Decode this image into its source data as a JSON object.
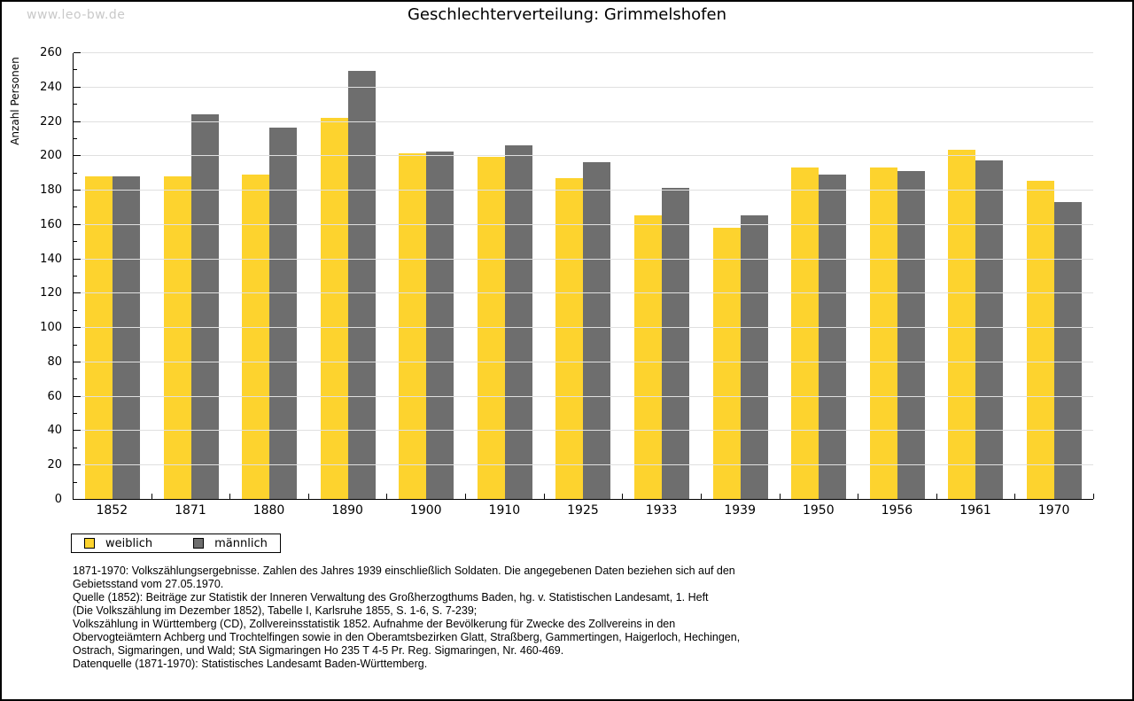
{
  "watermark": "www.leo-bw.de",
  "chart_data": {
    "type": "bar",
    "title": "Geschlechterverteilung: Grimmelshofen",
    "xlabel": "",
    "ylabel": "Anzahl Personen",
    "categories": [
      "1852",
      "1871",
      "1880",
      "1890",
      "1900",
      "1910",
      "1925",
      "1933",
      "1939",
      "1950",
      "1956",
      "1961",
      "1970"
    ],
    "series": [
      {
        "name": "weiblich",
        "color": "#FDD32E",
        "values": [
          188,
          188,
          189,
          222,
          201,
          199,
          187,
          165,
          158,
          193,
          193,
          203,
          185
        ]
      },
      {
        "name": "männlich",
        "color": "#6E6E6E",
        "values": [
          188,
          224,
          216,
          249,
          202,
          206,
          196,
          181,
          165,
          189,
          191,
          197,
          173
        ]
      }
    ],
    "ylim": [
      0,
      260
    ],
    "y_major_step": 20,
    "y_minor_step": 10,
    "grid": "horizontal-major",
    "legend_position": "bottom-left"
  },
  "colors": {
    "background": "#FFFFFF",
    "axis": "#000000",
    "gridline": "#E0E0E0",
    "watermark_text": "#C9C9C9",
    "bar_female": "#FDD32E",
    "bar_male": "#6E6E6E"
  },
  "footer": {
    "notes": [
      "1871-1970: Volkszählungsergebnisse. Zahlen des Jahres 1939 einschließlich Soldaten. Die angegebenen Daten beziehen sich auf den",
      "Gebietsstand vom 27.05.1970.",
      "Quelle (1852): Beiträge zur Statistik der Inneren Verwaltung des Großherzogthums Baden, hg. v. Statistischen Landesamt, 1. Heft",
      "(Die Volkszählung im Dezember 1852), Tabelle I, Karlsruhe 1855, S. 1-6, S. 7-239;",
      "Volkszählung in Württemberg (CD), Zollvereinsstatistik 1852. Aufnahme der Bevölkerung für Zwecke des Zollvereins in den",
      "Obervogteiämtern Achberg und Trochtelfingen sowie in den Oberamtsbezirken Glatt, Straßberg, Gammertingen, Haigerloch, Hechingen,",
      "Ostrach, Sigmaringen, und Wald; StA Sigmaringen Ho 235 T 4-5 Pr. Reg. Sigmaringen, Nr. 460-469."
    ],
    "datasource": "Datenquelle (1871-1970): Statistisches Landesamt Baden-Württemberg."
  }
}
